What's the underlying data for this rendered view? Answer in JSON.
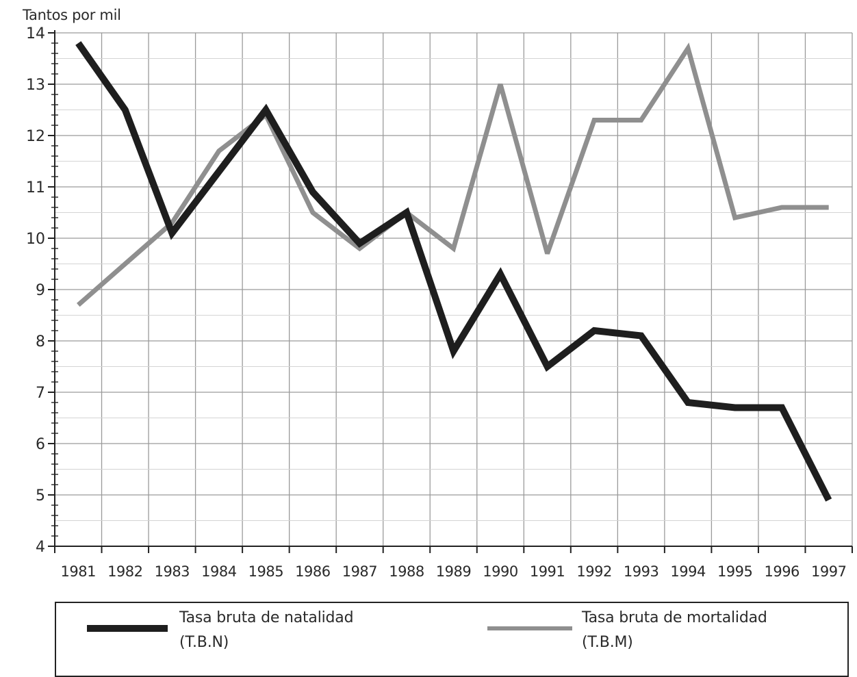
{
  "chart_data": {
    "type": "line",
    "ylabel": "Tantos por mil",
    "xlabel": "",
    "categories": [
      "1981",
      "1982",
      "1983",
      "1984",
      "1985",
      "1986",
      "1987",
      "1988",
      "1989",
      "1990",
      "1991",
      "1992",
      "1993",
      "1994",
      "1995",
      "1996",
      "1997"
    ],
    "ylim": [
      4,
      14
    ],
    "yticks": [
      "4",
      "5",
      "6",
      "7",
      "8",
      "9",
      "10",
      "11",
      "12",
      "13",
      "14"
    ],
    "grid": true,
    "series": [
      {
        "name": "Tasa bruta de natalidad",
        "abbr": "(T.B.N)",
        "color": "#1e1e1e",
        "values": [
          13.8,
          12.5,
          10.1,
          11.3,
          12.5,
          10.9,
          9.9,
          10.5,
          7.8,
          9.3,
          7.5,
          8.2,
          8.1,
          6.8,
          6.7,
          6.7,
          4.9
        ]
      },
      {
        "name": "Tasa bruta de mortalidad",
        "abbr": "(T.B.M)",
        "color": "#8f8f8f",
        "values": [
          8.7,
          9.5,
          10.3,
          11.7,
          12.4,
          10.5,
          9.8,
          10.5,
          9.8,
          13.0,
          9.7,
          12.3,
          12.3,
          13.7,
          10.4,
          10.6,
          10.6
        ]
      }
    ],
    "legend_position": "bottom"
  }
}
